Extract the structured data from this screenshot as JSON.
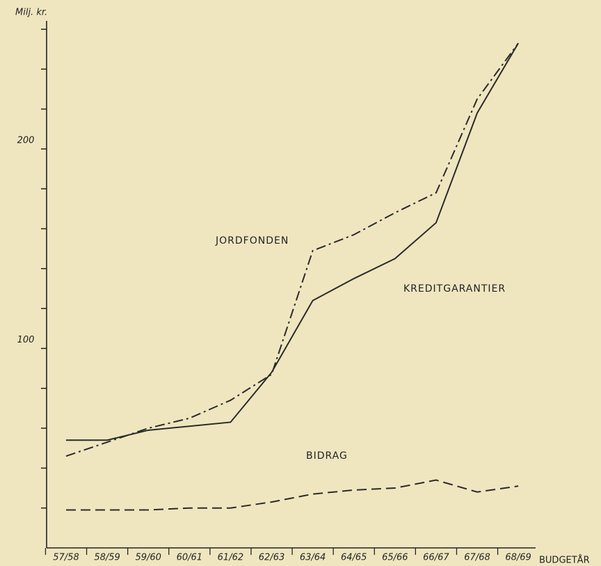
{
  "chart_data": {
    "type": "line",
    "y_label": "Milj. kr.",
    "x_label": "BUDGETÅR",
    "categories": [
      "57/58",
      "58/59",
      "59/60",
      "60/61",
      "61/62",
      "62/63",
      "63/64",
      "64/65",
      "65/66",
      "66/67",
      "67/68",
      "68/69"
    ],
    "series": [
      {
        "name": "JORDFONDEN",
        "color": "#2a2a2a",
        "dash": "dashdot",
        "values": [
          46,
          53,
          60,
          65,
          74,
          87,
          149,
          157,
          168,
          178,
          225,
          253
        ]
      },
      {
        "name": "KREDITGARANTIER",
        "color": "#2a2a2a",
        "dash": "solid",
        "values": [
          54,
          54,
          59,
          61,
          63,
          88,
          124,
          135,
          145,
          163,
          218,
          253
        ]
      },
      {
        "name": "BIDRAG",
        "color": "#2a2a2a",
        "dash": "dashed",
        "values": [
          19,
          19,
          19,
          20,
          20,
          23,
          27,
          29,
          30,
          34,
          28,
          31
        ]
      }
    ],
    "ylim": [
      0,
      260
    ],
    "yticks": [
      100,
      200
    ],
    "minor_yticks": [
      20,
      40,
      60,
      80,
      120,
      140,
      160,
      180,
      220,
      240,
      260
    ]
  }
}
